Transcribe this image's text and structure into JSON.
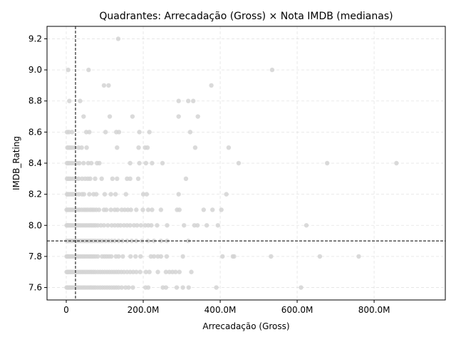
{
  "chart_data": {
    "type": "scatter",
    "title": "Quadrantes: Arrecadação (Gross) × Nota IMDB (medianas)",
    "xlabel": "Arrecadação (Gross)",
    "ylabel": "IMDB_Rating",
    "xlim": [
      -50,
      985
    ],
    "ylim": [
      7.52,
      9.28
    ],
    "x_unit": "M",
    "xticks": [
      0,
      200,
      400,
      600,
      800
    ],
    "xtick_labels": [
      "0",
      "200.0M",
      "400.0M",
      "600.0M",
      "800.0M"
    ],
    "yticks": [
      7.6,
      7.8,
      8.0,
      8.2,
      8.4,
      8.6,
      8.8,
      9.0,
      9.2
    ],
    "ytick_labels": [
      "7.6",
      "7.8",
      "8.0",
      "8.2",
      "8.4",
      "8.6",
      "8.8",
      "9.0",
      "9.2"
    ],
    "grid": true,
    "median_x": 24,
    "median_y": 7.9,
    "point_color": "#d3d3d3",
    "median_line_color": "#000000",
    "points": [
      [
        135,
        9.2
      ],
      [
        5,
        9.0
      ],
      [
        58,
        9.0
      ],
      [
        535,
        9.0
      ],
      [
        98,
        8.9
      ],
      [
        110,
        8.9
      ],
      [
        377,
        8.9
      ],
      [
        8,
        8.8
      ],
      [
        36,
        8.8
      ],
      [
        292,
        8.8
      ],
      [
        317,
        8.8
      ],
      [
        330,
        8.8
      ],
      [
        45,
        8.7
      ],
      [
        113,
        8.7
      ],
      [
        172,
        8.7
      ],
      [
        292,
        8.7
      ],
      [
        342,
        8.7
      ],
      [
        2,
        8.6
      ],
      [
        7,
        8.6
      ],
      [
        15,
        8.6
      ],
      [
        52,
        8.6
      ],
      [
        60,
        8.6
      ],
      [
        102,
        8.6
      ],
      [
        130,
        8.6
      ],
      [
        137,
        8.6
      ],
      [
        190,
        8.6
      ],
      [
        216,
        8.6
      ],
      [
        322,
        8.6
      ],
      [
        3,
        8.5
      ],
      [
        6,
        8.5
      ],
      [
        10,
        8.5
      ],
      [
        15,
        8.5
      ],
      [
        22,
        8.5
      ],
      [
        32,
        8.5
      ],
      [
        40,
        8.5
      ],
      [
        53,
        8.5
      ],
      [
        132,
        8.5
      ],
      [
        188,
        8.5
      ],
      [
        205,
        8.5
      ],
      [
        211,
        8.5
      ],
      [
        335,
        8.5
      ],
      [
        422,
        8.5
      ],
      [
        2,
        8.4
      ],
      [
        5,
        8.4
      ],
      [
        9,
        8.4
      ],
      [
        14,
        8.4
      ],
      [
        20,
        8.4
      ],
      [
        27,
        8.4
      ],
      [
        34,
        8.4
      ],
      [
        45,
        8.4
      ],
      [
        57,
        8.4
      ],
      [
        65,
        8.4
      ],
      [
        80,
        8.4
      ],
      [
        86,
        8.4
      ],
      [
        166,
        8.4
      ],
      [
        190,
        8.4
      ],
      [
        207,
        8.4
      ],
      [
        223,
        8.4
      ],
      [
        250,
        8.4
      ],
      [
        448,
        8.4
      ],
      [
        678,
        8.4
      ],
      [
        858,
        8.4
      ],
      [
        2,
        8.3
      ],
      [
        5,
        8.3
      ],
      [
        8,
        8.3
      ],
      [
        12,
        8.3
      ],
      [
        18,
        8.3
      ],
      [
        25,
        8.3
      ],
      [
        32,
        8.3
      ],
      [
        41,
        8.3
      ],
      [
        49,
        8.3
      ],
      [
        56,
        8.3
      ],
      [
        62,
        8.3
      ],
      [
        75,
        8.3
      ],
      [
        92,
        8.3
      ],
      [
        120,
        8.3
      ],
      [
        132,
        8.3
      ],
      [
        158,
        8.3
      ],
      [
        166,
        8.3
      ],
      [
        187,
        8.3
      ],
      [
        311,
        8.3
      ],
      [
        2,
        8.2
      ],
      [
        4,
        8.2
      ],
      [
        7,
        8.2
      ],
      [
        11,
        8.2
      ],
      [
        15,
        8.2
      ],
      [
        19,
        8.2
      ],
      [
        26,
        8.2
      ],
      [
        33,
        8.2
      ],
      [
        41,
        8.2
      ],
      [
        46,
        8.2
      ],
      [
        60,
        8.2
      ],
      [
        71,
        8.2
      ],
      [
        78,
        8.2
      ],
      [
        100,
        8.2
      ],
      [
        116,
        8.2
      ],
      [
        128,
        8.2
      ],
      [
        155,
        8.2
      ],
      [
        200,
        8.2
      ],
      [
        209,
        8.2
      ],
      [
        292,
        8.2
      ],
      [
        416,
        8.2
      ],
      [
        1,
        8.1
      ],
      [
        3,
        8.1
      ],
      [
        5,
        8.1
      ],
      [
        8,
        8.1
      ],
      [
        11,
        8.1
      ],
      [
        14,
        8.1
      ],
      [
        18,
        8.1
      ],
      [
        22,
        8.1
      ],
      [
        28,
        8.1
      ],
      [
        34,
        8.1
      ],
      [
        40,
        8.1
      ],
      [
        46,
        8.1
      ],
      [
        51,
        8.1
      ],
      [
        56,
        8.1
      ],
      [
        62,
        8.1
      ],
      [
        67,
        8.1
      ],
      [
        72,
        8.1
      ],
      [
        78,
        8.1
      ],
      [
        85,
        8.1
      ],
      [
        98,
        8.1
      ],
      [
        104,
        8.1
      ],
      [
        116,
        8.1
      ],
      [
        126,
        8.1
      ],
      [
        133,
        8.1
      ],
      [
        144,
        8.1
      ],
      [
        152,
        8.1
      ],
      [
        160,
        8.1
      ],
      [
        168,
        8.1
      ],
      [
        182,
        8.1
      ],
      [
        199,
        8.1
      ],
      [
        213,
        8.1
      ],
      [
        223,
        8.1
      ],
      [
        246,
        8.1
      ],
      [
        288,
        8.1
      ],
      [
        294,
        8.1
      ],
      [
        357,
        8.1
      ],
      [
        380,
        8.1
      ],
      [
        403,
        8.1
      ],
      [
        1,
        8.0
      ],
      [
        3,
        8.0
      ],
      [
        5,
        8.0
      ],
      [
        8,
        8.0
      ],
      [
        11,
        8.0
      ],
      [
        14,
        8.0
      ],
      [
        18,
        8.0
      ],
      [
        22,
        8.0
      ],
      [
        27,
        8.0
      ],
      [
        31,
        8.0
      ],
      [
        36,
        8.0
      ],
      [
        41,
        8.0
      ],
      [
        46,
        8.0
      ],
      [
        51,
        8.0
      ],
      [
        56,
        8.0
      ],
      [
        61,
        8.0
      ],
      [
        66,
        8.0
      ],
      [
        71,
        8.0
      ],
      [
        76,
        8.0
      ],
      [
        82,
        8.0
      ],
      [
        90,
        8.0
      ],
      [
        98,
        8.0
      ],
      [
        108,
        8.0
      ],
      [
        118,
        8.0
      ],
      [
        126,
        8.0
      ],
      [
        134,
        8.0
      ],
      [
        141,
        8.0
      ],
      [
        150,
        8.0
      ],
      [
        158,
        8.0
      ],
      [
        166,
        8.0
      ],
      [
        176,
        8.0
      ],
      [
        184,
        8.0
      ],
      [
        194,
        8.0
      ],
      [
        205,
        8.0
      ],
      [
        213,
        8.0
      ],
      [
        221,
        8.0
      ],
      [
        236,
        8.0
      ],
      [
        262,
        8.0
      ],
      [
        306,
        8.0
      ],
      [
        333,
        8.0
      ],
      [
        341,
        8.0
      ],
      [
        365,
        8.0
      ],
      [
        394,
        8.0
      ],
      [
        624,
        8.0
      ],
      [
        1,
        7.9
      ],
      [
        3,
        7.9
      ],
      [
        5,
        7.9
      ],
      [
        8,
        7.9
      ],
      [
        11,
        7.9
      ],
      [
        14,
        7.9
      ],
      [
        18,
        7.9
      ],
      [
        22,
        7.9
      ],
      [
        27,
        7.9
      ],
      [
        31,
        7.9
      ],
      [
        36,
        7.9
      ],
      [
        41,
        7.9
      ],
      [
        46,
        7.9
      ],
      [
        51,
        7.9
      ],
      [
        56,
        7.9
      ],
      [
        61,
        7.9
      ],
      [
        66,
        7.9
      ],
      [
        71,
        7.9
      ],
      [
        76,
        7.9
      ],
      [
        82,
        7.9
      ],
      [
        88,
        7.9
      ],
      [
        94,
        7.9
      ],
      [
        102,
        7.9
      ],
      [
        110,
        7.9
      ],
      [
        118,
        7.9
      ],
      [
        126,
        7.9
      ],
      [
        136,
        7.9
      ],
      [
        146,
        7.9
      ],
      [
        158,
        7.9
      ],
      [
        170,
        7.9
      ],
      [
        182,
        7.9
      ],
      [
        197,
        7.9
      ],
      [
        212,
        7.9
      ],
      [
        228,
        7.9
      ],
      [
        246,
        7.9
      ],
      [
        262,
        7.9
      ],
      [
        317,
        7.9
      ],
      [
        1,
        7.8
      ],
      [
        3,
        7.8
      ],
      [
        5,
        7.8
      ],
      [
        8,
        7.8
      ],
      [
        11,
        7.8
      ],
      [
        14,
        7.8
      ],
      [
        18,
        7.8
      ],
      [
        22,
        7.8
      ],
      [
        27,
        7.8
      ],
      [
        31,
        7.8
      ],
      [
        36,
        7.8
      ],
      [
        41,
        7.8
      ],
      [
        46,
        7.8
      ],
      [
        51,
        7.8
      ],
      [
        56,
        7.8
      ],
      [
        61,
        7.8
      ],
      [
        66,
        7.8
      ],
      [
        71,
        7.8
      ],
      [
        76,
        7.8
      ],
      [
        82,
        7.8
      ],
      [
        93,
        7.8
      ],
      [
        99,
        7.8
      ],
      [
        105,
        7.8
      ],
      [
        111,
        7.8
      ],
      [
        117,
        7.8
      ],
      [
        129,
        7.8
      ],
      [
        136,
        7.8
      ],
      [
        147,
        7.8
      ],
      [
        167,
        7.8
      ],
      [
        180,
        7.8
      ],
      [
        193,
        7.8
      ],
      [
        220,
        7.8
      ],
      [
        228,
        7.8
      ],
      [
        238,
        7.8
      ],
      [
        246,
        7.8
      ],
      [
        261,
        7.8
      ],
      [
        303,
        7.8
      ],
      [
        406,
        7.8
      ],
      [
        433,
        7.8
      ],
      [
        436,
        7.8
      ],
      [
        532,
        7.8
      ],
      [
        659,
        7.8
      ],
      [
        760,
        7.8
      ],
      [
        1,
        7.7
      ],
      [
        3,
        7.7
      ],
      [
        5,
        7.7
      ],
      [
        8,
        7.7
      ],
      [
        11,
        7.7
      ],
      [
        14,
        7.7
      ],
      [
        18,
        7.7
      ],
      [
        22,
        7.7
      ],
      [
        27,
        7.7
      ],
      [
        31,
        7.7
      ],
      [
        36,
        7.7
      ],
      [
        41,
        7.7
      ],
      [
        46,
        7.7
      ],
      [
        51,
        7.7
      ],
      [
        56,
        7.7
      ],
      [
        61,
        7.7
      ],
      [
        66,
        7.7
      ],
      [
        71,
        7.7
      ],
      [
        76,
        7.7
      ],
      [
        82,
        7.7
      ],
      [
        88,
        7.7
      ],
      [
        94,
        7.7
      ],
      [
        100,
        7.7
      ],
      [
        106,
        7.7
      ],
      [
        112,
        7.7
      ],
      [
        118,
        7.7
      ],
      [
        124,
        7.7
      ],
      [
        130,
        7.7
      ],
      [
        136,
        7.7
      ],
      [
        143,
        7.7
      ],
      [
        150,
        7.7
      ],
      [
        158,
        7.7
      ],
      [
        166,
        7.7
      ],
      [
        174,
        7.7
      ],
      [
        182,
        7.7
      ],
      [
        192,
        7.7
      ],
      [
        207,
        7.7
      ],
      [
        216,
        7.7
      ],
      [
        238,
        7.7
      ],
      [
        259,
        7.7
      ],
      [
        268,
        7.7
      ],
      [
        276,
        7.7
      ],
      [
        284,
        7.7
      ],
      [
        294,
        7.7
      ],
      [
        325,
        7.7
      ],
      [
        1,
        7.6
      ],
      [
        3,
        7.6
      ],
      [
        5,
        7.6
      ],
      [
        8,
        7.6
      ],
      [
        11,
        7.6
      ],
      [
        14,
        7.6
      ],
      [
        18,
        7.6
      ],
      [
        22,
        7.6
      ],
      [
        27,
        7.6
      ],
      [
        31,
        7.6
      ],
      [
        36,
        7.6
      ],
      [
        41,
        7.6
      ],
      [
        46,
        7.6
      ],
      [
        51,
        7.6
      ],
      [
        56,
        7.6
      ],
      [
        61,
        7.6
      ],
      [
        66,
        7.6
      ],
      [
        71,
        7.6
      ],
      [
        76,
        7.6
      ],
      [
        82,
        7.6
      ],
      [
        88,
        7.6
      ],
      [
        94,
        7.6
      ],
      [
        100,
        7.6
      ],
      [
        106,
        7.6
      ],
      [
        112,
        7.6
      ],
      [
        118,
        7.6
      ],
      [
        124,
        7.6
      ],
      [
        130,
        7.6
      ],
      [
        136,
        7.6
      ],
      [
        144,
        7.6
      ],
      [
        154,
        7.6
      ],
      [
        162,
        7.6
      ],
      [
        173,
        7.6
      ],
      [
        206,
        7.6
      ],
      [
        213,
        7.6
      ],
      [
        251,
        7.6
      ],
      [
        259,
        7.6
      ],
      [
        287,
        7.6
      ],
      [
        303,
        7.6
      ],
      [
        318,
        7.6
      ],
      [
        390,
        7.6
      ],
      [
        610,
        7.6
      ]
    ]
  }
}
